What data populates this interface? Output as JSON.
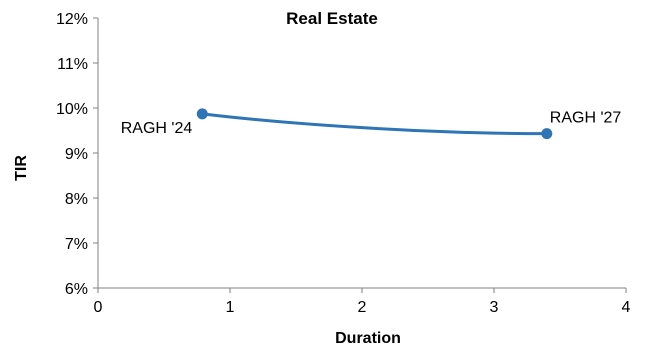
{
  "chart_data": {
    "type": "line",
    "title": "Real Estate",
    "xlabel": "Duration",
    "ylabel": "TIR",
    "xlim": [
      0,
      4
    ],
    "ylim": [
      6,
      12
    ],
    "x_ticks": [
      0,
      1,
      2,
      3,
      4
    ],
    "y_ticks": [
      6,
      7,
      8,
      9,
      10,
      11,
      12
    ],
    "x_tick_labels": [
      "0",
      "1",
      "2",
      "3",
      "4"
    ],
    "y_tick_labels": [
      "6%",
      "7%",
      "8%",
      "9%",
      "10%",
      "11%",
      "12%"
    ],
    "grid": false,
    "series": [
      {
        "color": "#2E75B6",
        "smooth": true,
        "points": [
          {
            "x": 0.79,
            "y": 9.87,
            "label": "RAGH '24"
          },
          {
            "x": 3.4,
            "y": 9.43,
            "label": "RAGH '27"
          }
        ]
      }
    ]
  }
}
